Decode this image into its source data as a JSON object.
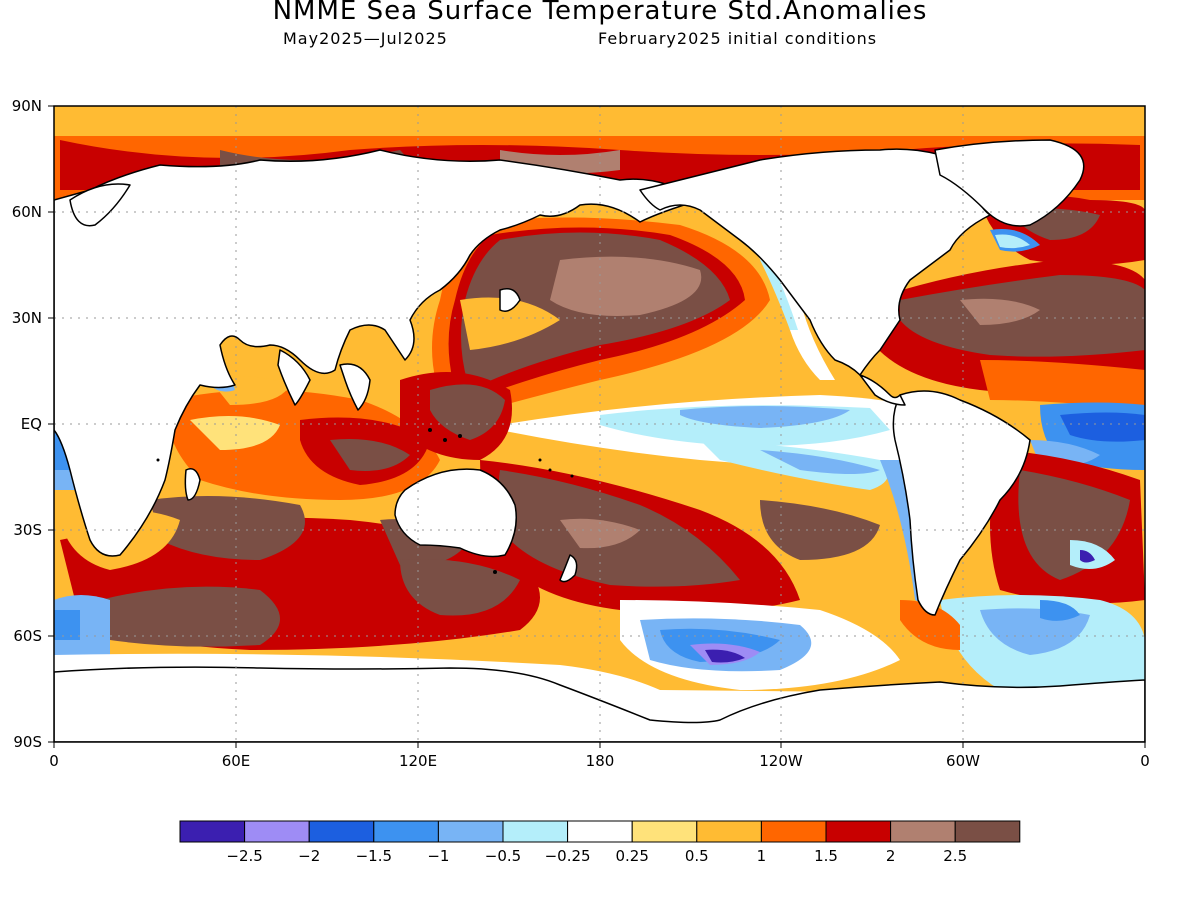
{
  "title": "NMME Sea Surface Temperature Std.Anomalies",
  "subtitle_left": "May2025—Jul2025",
  "subtitle_right": "February2025 initial conditions",
  "lat_labels": [
    "90N",
    "60N",
    "30N",
    "EQ",
    "30S",
    "60S",
    "90S"
  ],
  "lon_labels": [
    "0",
    "60E",
    "120E",
    "180",
    "120W",
    "60W",
    "0"
  ],
  "colorbar": {
    "colors": [
      "#3b1fb0",
      "#9e8cf5",
      "#1c5fe0",
      "#3d92f0",
      "#78b4f5",
      "#b4eefa",
      "#ffffff",
      "#ffe27a",
      "#ffbb33",
      "#ff6600",
      "#c80000",
      "#b08070",
      "#7a4f45"
    ],
    "labels": [
      "−2.5",
      "−2",
      "−1.5",
      "−1",
      "−0.5",
      "−0.25",
      "0.25",
      "0.5",
      "1",
      "1.5",
      "2",
      "2.5"
    ]
  },
  "legend_colors": {
    "land": "#ffffff",
    "coast": "#000000"
  }
}
